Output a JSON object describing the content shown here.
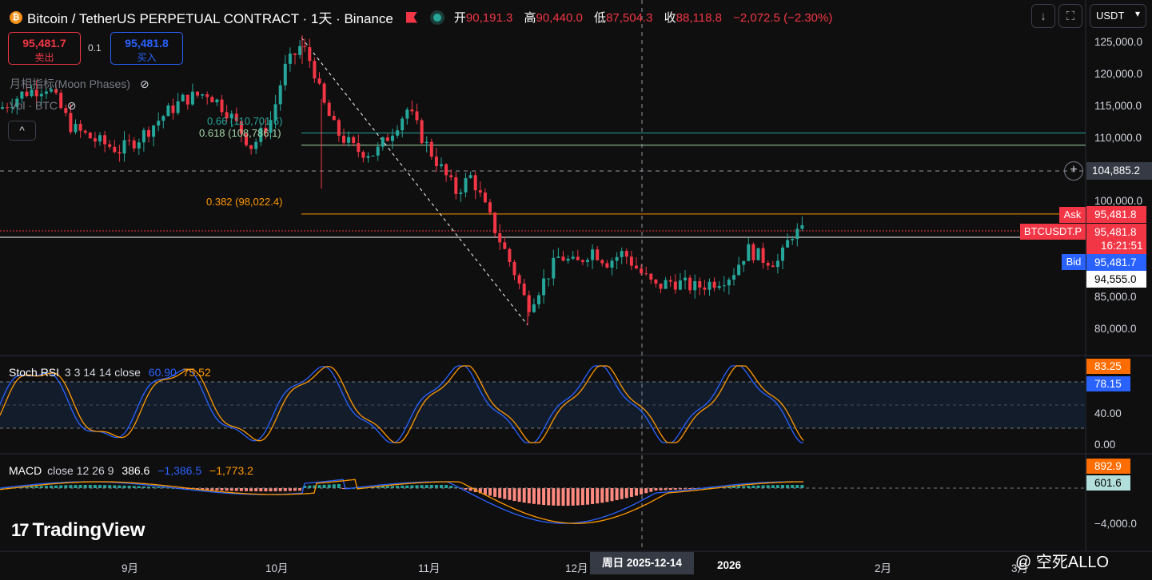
{
  "header": {
    "symbol": "Bitcoin / TetherUS PERPETUAL CONTRACT · 1天 · Binance",
    "coin_icon": "bitcoin-icon",
    "ohlc": [
      {
        "key": "开",
        "value": "90,191.3"
      },
      {
        "key": "高",
        "value": "90,440.0"
      },
      {
        "key": "低",
        "value": "87,504.3"
      },
      {
        "key": "收",
        "value": "88,118.8"
      }
    ],
    "change": "−2,072.5 (−2.30%)",
    "currency": "USDT",
    "currency_caret": "▾"
  },
  "toolbar": {
    "down_icon": "↓",
    "fullscreen_icon": "⛶"
  },
  "order": {
    "sell_price": "95,481.7",
    "sell_label": "卖出",
    "quantity": "0.1",
    "buy_price": "95,481.8",
    "buy_label": "买入"
  },
  "indicators": {
    "moon": "月相指标(Moon Phases)",
    "vol": "Vol · BTC",
    "collapse_icon": "^",
    "stoch_name": "Stoch RSI",
    "stoch_params": "3 3 14 14 close",
    "stoch_k": "60.90",
    "stoch_d": "75.52",
    "macd_name": "MACD",
    "macd_params": "close 12 26 9",
    "macd_hist": "386.6",
    "macd_line": "−1,386.5",
    "macd_signal": "−1,773.2"
  },
  "fib": [
    {
      "label": "0.66 (110,701.6)",
      "price": 110701.6,
      "color": "#26a69a"
    },
    {
      "label": "0.618 (108,786.1)",
      "price": 108786.1,
      "color": "#a5d6a7"
    },
    {
      "label": "0.382 (98,022.4)",
      "price": 98022.4,
      "color": "#ff9800"
    }
  ],
  "price_axis": {
    "ticks": [
      "125,000.0",
      "120,000.0",
      "115,000.0",
      "110,000.0",
      "100,000.0",
      "85,000.0",
      "80,000.0"
    ],
    "crosshair": "104,885.2",
    "ask_label": "Ask",
    "ask": "95,481.8",
    "symbol_label": "BTCUSDT.P",
    "last": "95,481.8",
    "countdown": "16:21:51",
    "bid_label": "Bid",
    "bid": "95,481.7",
    "extra": "94,555.0"
  },
  "stoch_axis": {
    "k_tag": "83.25",
    "d_tag": "78.15",
    "ticks": [
      "40.00",
      "0.00"
    ]
  },
  "macd_axis": {
    "tag1": "892.9",
    "tag2": "601.6",
    "ticks": [
      "−4,000.0"
    ]
  },
  "time_axis": {
    "labels": [
      "9月",
      "10月",
      "11月",
      "12月",
      "2026",
      "2月",
      "3月"
    ],
    "crosshair": "周日 2025-12-14"
  },
  "brand": {
    "logo": "TradingView",
    "logo_mark": "17"
  },
  "watermark": "@ 空死ALLO",
  "colors": {
    "up": "#26a69a",
    "down": "#f23645",
    "blue": "#2962ff",
    "orange": "#ff9800"
  },
  "chart_data": {
    "type": "candlestick",
    "price_ylim": [
      78000,
      127000
    ],
    "key_prices": {
      "high": 126000,
      "low": 80600,
      "last": 95481.8,
      "day_open": 90191.3,
      "day_high": 90440.0,
      "day_low": 87504.3,
      "day_close": 88118.8
    }
  }
}
